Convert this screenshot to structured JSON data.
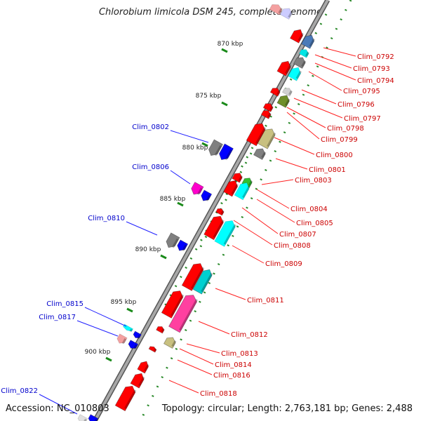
{
  "title": "Chlorobium limicola DSM 245, complete genome",
  "footer": {
    "accession": "Accession: NC_010803",
    "summary": "Topology: circular; Length: 2,763,181 bp; Genes: 2,488"
  },
  "colors": {
    "backbone": "#8a8a8a",
    "tick_dots": "#2a8a2a",
    "forward_label": "#cc0000",
    "reverse_label": "#0000cc"
  },
  "scale_ticks": [
    "870 kbp",
    "875 kbp",
    "880 kbp",
    "885 kbp",
    "890 kbp",
    "895 kbp",
    "900 kbp"
  ],
  "forward_genes": [
    "Clim_0792",
    "Clim_0793",
    "Clim_0794",
    "Clim_0795",
    "Clim_0796",
    "Clim_0797",
    "Clim_0798",
    "Clim_0799",
    "Clim_0800",
    "Clim_0801",
    "Clim_0803",
    "Clim_0804",
    "Clim_0805",
    "Clim_0807",
    "Clim_0808",
    "Clim_0809",
    "Clim_0811",
    "Clim_0812",
    "Clim_0813",
    "Clim_0814",
    "Clim_0816",
    "Clim_0818"
  ],
  "reverse_genes": [
    "Clim_0802",
    "Clim_0806",
    "Clim_0810",
    "Clim_0815",
    "Clim_0817",
    "Clim_0822"
  ]
}
